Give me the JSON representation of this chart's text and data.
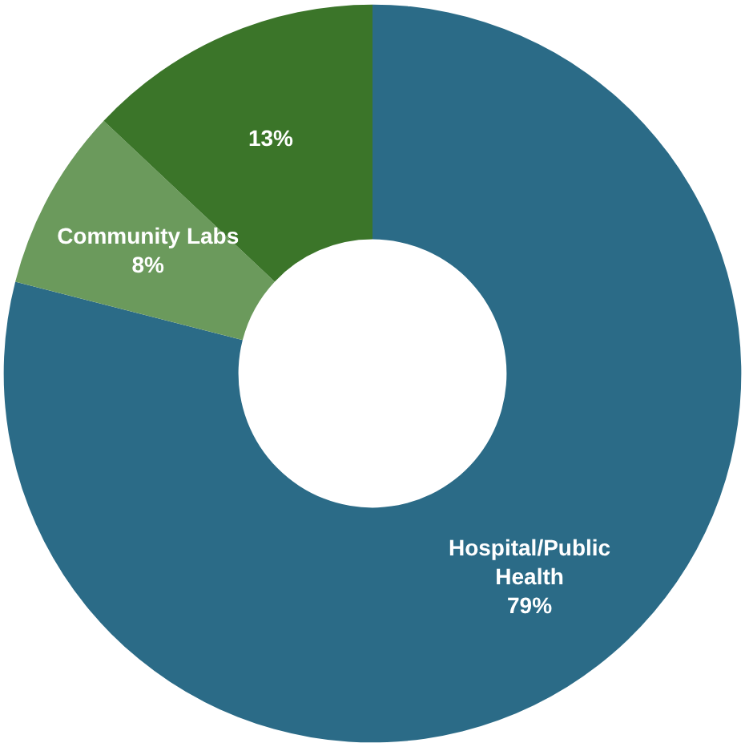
{
  "chart_data": {
    "type": "donut",
    "categories": [
      "Hospital/Public Health",
      "Community Labs",
      null
    ],
    "values": [
      79,
      8,
      13
    ],
    "colors": [
      "#2b6b87",
      "#6b9a5c",
      "#3b7529"
    ],
    "value_labels": [
      "79%",
      "8%",
      "13%"
    ],
    "legend": false
  }
}
